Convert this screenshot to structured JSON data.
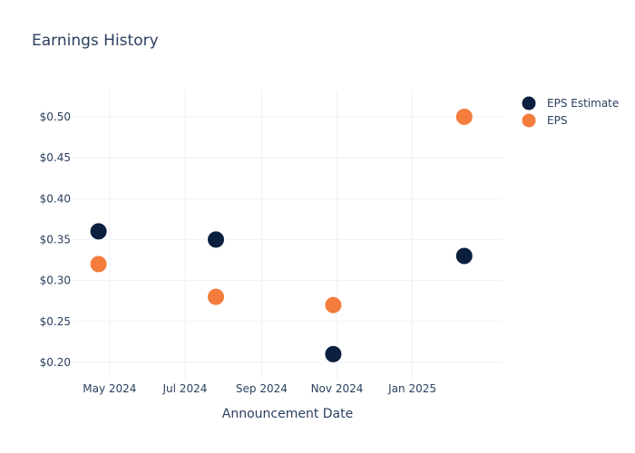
{
  "chart_data": {
    "type": "scatter",
    "title": "Earnings History",
    "xlabel": "Announcement Date",
    "ylabel": "",
    "x_tick_labels": [
      {
        "date": "2024-05-01",
        "label": "May 2024"
      },
      {
        "date": "2024-07-01",
        "label": "Jul 2024"
      },
      {
        "date": "2024-09-01",
        "label": "Sep 2024"
      },
      {
        "date": "2024-11-01",
        "label": "Nov 2024"
      },
      {
        "date": "2025-01-01",
        "label": "Jan 2025"
      }
    ],
    "y_ticks": [
      0.2,
      0.25,
      0.3,
      0.35,
      0.4,
      0.45,
      0.5
    ],
    "y_tick_format": "$0.00",
    "xlim": [
      "2024-04-01",
      "2025-03-15"
    ],
    "ylim": [
      0.18,
      0.532
    ],
    "grid": true,
    "legend_position": "top-right",
    "series": [
      {
        "name": "EPS Estimate",
        "color": "#0b1f3f",
        "points": [
          {
            "x": "2024-04-22",
            "y": 0.36
          },
          {
            "x": "2024-07-26",
            "y": 0.35
          },
          {
            "x": "2024-10-29",
            "y": 0.21
          },
          {
            "x": "2025-02-12",
            "y": 0.33
          }
        ]
      },
      {
        "name": "EPS",
        "color": "#f47c3c",
        "points": [
          {
            "x": "2024-04-22",
            "y": 0.32
          },
          {
            "x": "2024-07-26",
            "y": 0.28
          },
          {
            "x": "2024-10-29",
            "y": 0.27
          },
          {
            "x": "2025-02-12",
            "y": 0.5
          }
        ]
      }
    ]
  }
}
